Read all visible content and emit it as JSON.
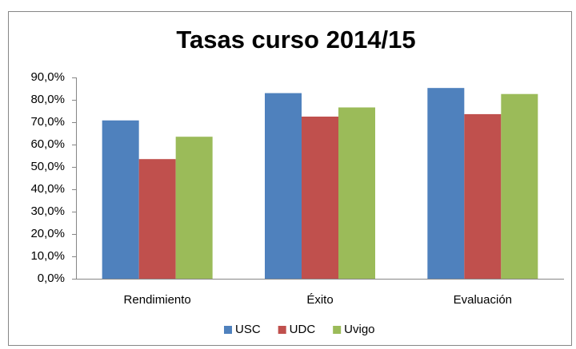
{
  "chart_data": {
    "type": "bar",
    "title": "Tasas curso 2014/15",
    "categories": [
      "Rendimiento",
      "Éxito",
      "Evaluación"
    ],
    "series": [
      {
        "name": "USC",
        "color": "#4f81bd",
        "values": [
          70.8,
          83.0,
          85.3
        ]
      },
      {
        "name": "UDC",
        "color": "#c0504d",
        "values": [
          53.5,
          72.5,
          73.6
        ]
      },
      {
        "name": "Uvigo",
        "color": "#9bbb59",
        "values": [
          63.5,
          76.6,
          82.6
        ]
      }
    ],
    "ylim": [
      0,
      90
    ],
    "yticks": [
      {
        "value": 0,
        "label": "0,0%"
      },
      {
        "value": 10,
        "label": "10,0%"
      },
      {
        "value": 20,
        "label": "20,0%"
      },
      {
        "value": 30,
        "label": "30,0%"
      },
      {
        "value": 40,
        "label": "40,0%"
      },
      {
        "value": 50,
        "label": "50,0%"
      },
      {
        "value": 60,
        "label": "60,0%"
      },
      {
        "value": 70,
        "label": "70,0%"
      },
      {
        "value": 80,
        "label": "80,0%"
      },
      {
        "value": 90,
        "label": "90,0%"
      }
    ],
    "grid": false,
    "legend": "bottom"
  }
}
